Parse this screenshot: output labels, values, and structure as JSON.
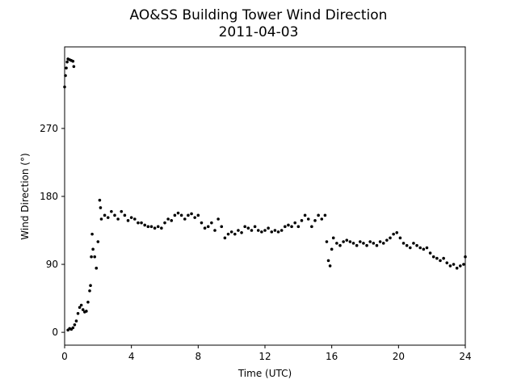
{
  "chart_data": {
    "type": "scatter",
    "title": "AO&SS Building Tower Wind Direction",
    "subtitle": "2011-04-03",
    "x_label": "Time (UTC)",
    "y_label": "Wind Direction (°)",
    "xlim": [
      0,
      24
    ],
    "xticks": [
      0,
      4,
      8,
      12,
      16,
      20,
      24
    ],
    "ylim": [
      -17,
      378
    ],
    "yticks": [
      0,
      90,
      180,
      270
    ],
    "color": "#000000",
    "series": [
      {
        "name": "Wind Direction",
        "color": "#000000",
        "x": [
          0.0,
          0.05,
          0.1,
          0.15,
          0.2,
          0.3,
          0.4,
          0.5,
          0.55,
          0.2,
          0.3,
          0.4,
          0.5,
          0.6,
          0.7,
          0.8,
          0.9,
          1.0,
          1.1,
          1.2,
          1.3,
          1.4,
          1.5,
          1.55,
          1.6,
          1.65,
          1.7,
          1.8,
          1.9,
          2.0,
          2.1,
          2.15,
          2.2,
          2.4,
          2.6,
          2.8,
          3.0,
          3.2,
          3.4,
          3.6,
          3.8,
          4.0,
          4.2,
          4.4,
          4.6,
          4.8,
          5.0,
          5.2,
          5.4,
          5.6,
          5.8,
          6.0,
          6.2,
          6.4,
          6.6,
          6.8,
          7.0,
          7.2,
          7.4,
          7.6,
          7.8,
          8.0,
          8.2,
          8.4,
          8.6,
          8.8,
          9.0,
          9.2,
          9.4,
          9.6,
          9.8,
          10.0,
          10.2,
          10.4,
          10.6,
          10.8,
          11.0,
          11.2,
          11.4,
          11.6,
          11.8,
          12.0,
          12.2,
          12.4,
          12.6,
          12.8,
          13.0,
          13.2,
          13.4,
          13.6,
          13.8,
          14.0,
          14.2,
          14.4,
          14.6,
          14.8,
          15.0,
          15.2,
          15.4,
          15.6,
          15.7,
          15.8,
          15.9,
          16.0,
          16.1,
          16.3,
          16.5,
          16.7,
          16.9,
          17.1,
          17.3,
          17.5,
          17.7,
          17.9,
          18.1,
          18.3,
          18.5,
          18.7,
          18.9,
          19.1,
          19.3,
          19.5,
          19.7,
          19.9,
          20.1,
          20.3,
          20.5,
          20.7,
          20.9,
          21.1,
          21.3,
          21.5,
          21.7,
          21.9,
          22.1,
          22.3,
          22.5,
          22.7,
          22.9,
          23.1,
          23.3,
          23.5,
          23.7,
          23.9,
          24.0
        ],
        "values": [
          325,
          340,
          350,
          358,
          362,
          361,
          360,
          359,
          352,
          3,
          5,
          4,
          6,
          10,
          15,
          25,
          33,
          36,
          30,
          27,
          28,
          40,
          55,
          62,
          100,
          130,
          110,
          100,
          85,
          120,
          175,
          165,
          150,
          155,
          152,
          160,
          155,
          150,
          160,
          155,
          148,
          152,
          150,
          145,
          145,
          142,
          140,
          140,
          138,
          140,
          138,
          145,
          150,
          148,
          155,
          158,
          155,
          150,
          155,
          157,
          152,
          155,
          145,
          138,
          140,
          145,
          135,
          150,
          140,
          125,
          130,
          133,
          130,
          135,
          132,
          140,
          138,
          135,
          140,
          135,
          133,
          135,
          138,
          133,
          135,
          133,
          135,
          140,
          142,
          140,
          145,
          140,
          148,
          155,
          150,
          140,
          148,
          155,
          150,
          155,
          120,
          95,
          88,
          110,
          125,
          118,
          115,
          120,
          122,
          120,
          118,
          115,
          120,
          118,
          115,
          120,
          118,
          115,
          120,
          118,
          122,
          125,
          130,
          132,
          125,
          118,
          115,
          112,
          118,
          115,
          112,
          110,
          112,
          105,
          100,
          98,
          95,
          98,
          92,
          88,
          90,
          85,
          88,
          90,
          100
        ]
      }
    ]
  }
}
